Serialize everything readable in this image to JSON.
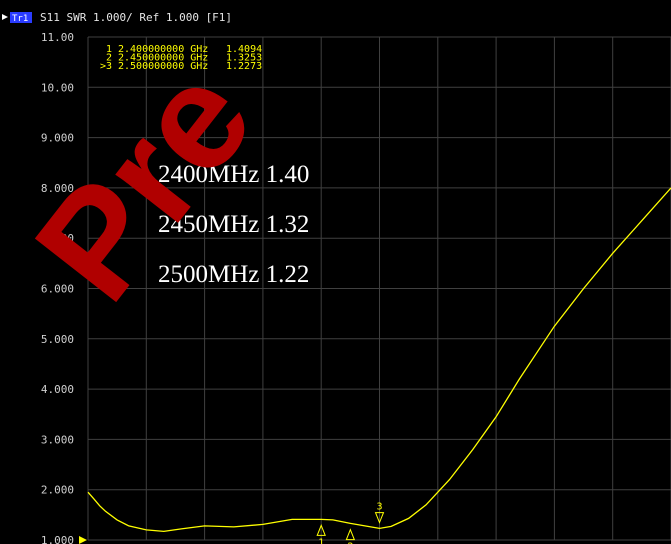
{
  "header": {
    "trace_badge": "Tr1",
    "text": "S11  SWR 1.000/ Ref 1.000  [F1]"
  },
  "watermark": "Pre",
  "markers": {
    "rows": [
      {
        "id": "1",
        "freq": "2.400000000 GHz",
        "value": "1.4094"
      },
      {
        "id": "2",
        "freq": "2.450000000 GHz",
        "value": "1.3253"
      },
      {
        "id": ">3",
        "freq": "2.500000000 GHz",
        "value": "1.2273"
      }
    ]
  },
  "annotations": [
    "2400MHz 1.40",
    "2450MHz 1.32",
    "2500MHz 1.22"
  ],
  "colors": {
    "trace": "#ffff00",
    "grid": "#404040",
    "background": "#000000",
    "watermark": "#b00000",
    "badge": "#2a3cff"
  },
  "chart_data": {
    "type": "line",
    "title": "",
    "xlabel": "",
    "ylabel": "",
    "ylim": [
      1.0,
      11.0
    ],
    "xlim": [
      2.0,
      3.0
    ],
    "yticks": [
      "1.000",
      "2.000",
      "3.000",
      "4.000",
      "5.000",
      "6.000",
      "7.000",
      "8.000",
      "9.000",
      "10.00",
      "11.00"
    ],
    "grid": true,
    "series": [
      {
        "x": [
          2.0,
          2.01,
          2.02,
          2.03,
          2.05,
          2.07,
          2.1,
          2.13,
          2.16,
          2.2,
          2.25,
          2.3,
          2.35,
          2.4,
          2.42,
          2.45,
          2.48,
          2.5,
          2.52,
          2.55,
          2.58,
          2.62,
          2.66,
          2.7,
          2.74,
          2.78,
          2.8,
          2.85,
          2.9,
          2.95,
          3.0
        ],
        "values": [
          1.95,
          1.82,
          1.68,
          1.57,
          1.4,
          1.28,
          1.2,
          1.17,
          1.22,
          1.28,
          1.26,
          1.31,
          1.41,
          1.41,
          1.4,
          1.33,
          1.27,
          1.23,
          1.27,
          1.43,
          1.7,
          2.2,
          2.8,
          3.45,
          4.2,
          4.9,
          5.25,
          6.0,
          6.7,
          7.35,
          8.0
        ]
      }
    ],
    "markers": [
      {
        "label": "1",
        "x": 2.4,
        "y": 1.4094
      },
      {
        "label": "2",
        "x": 2.45,
        "y": 1.3253
      },
      {
        "label": "3",
        "x": 2.5,
        "y": 1.2273
      }
    ],
    "ref_marker": {
      "y": 1.0,
      "label": "1.000"
    }
  }
}
